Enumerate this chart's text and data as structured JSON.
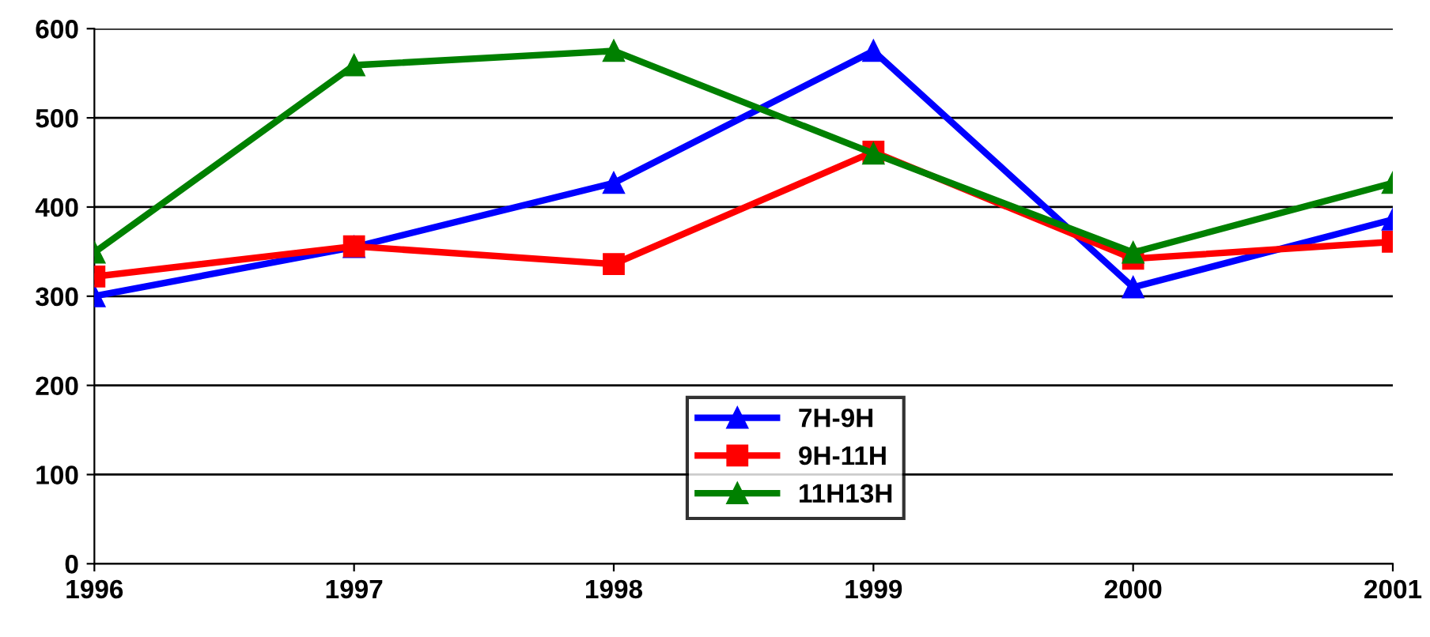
{
  "chart_data": {
    "type": "line",
    "x": [
      1996,
      1997,
      1998,
      1999,
      2000,
      2001
    ],
    "xlim": [
      1996,
      2001
    ],
    "xticks": [
      1996,
      1997,
      1998,
      1999,
      2000,
      2001
    ],
    "ylim": [
      0,
      600
    ],
    "yticks": [
      0,
      100,
      200,
      300,
      400,
      500,
      600
    ],
    "grid": "y",
    "legend": "bottom",
    "line_style": "solid",
    "series": [
      {
        "name": "7H-9H",
        "color": "#0000ff",
        "marker": "triangle",
        "values": [
          300,
          355,
          427,
          575,
          310,
          386
        ]
      },
      {
        "name": "9H-11H",
        "color": "#ff0000",
        "marker": "square",
        "values": [
          322,
          356,
          336,
          462,
          342,
          361
        ]
      },
      {
        "name": "11H13H",
        "color": "#008000",
        "marker": "triangle",
        "values": [
          349,
          559,
          575,
          460,
          349,
          427
        ]
      }
    ]
  }
}
